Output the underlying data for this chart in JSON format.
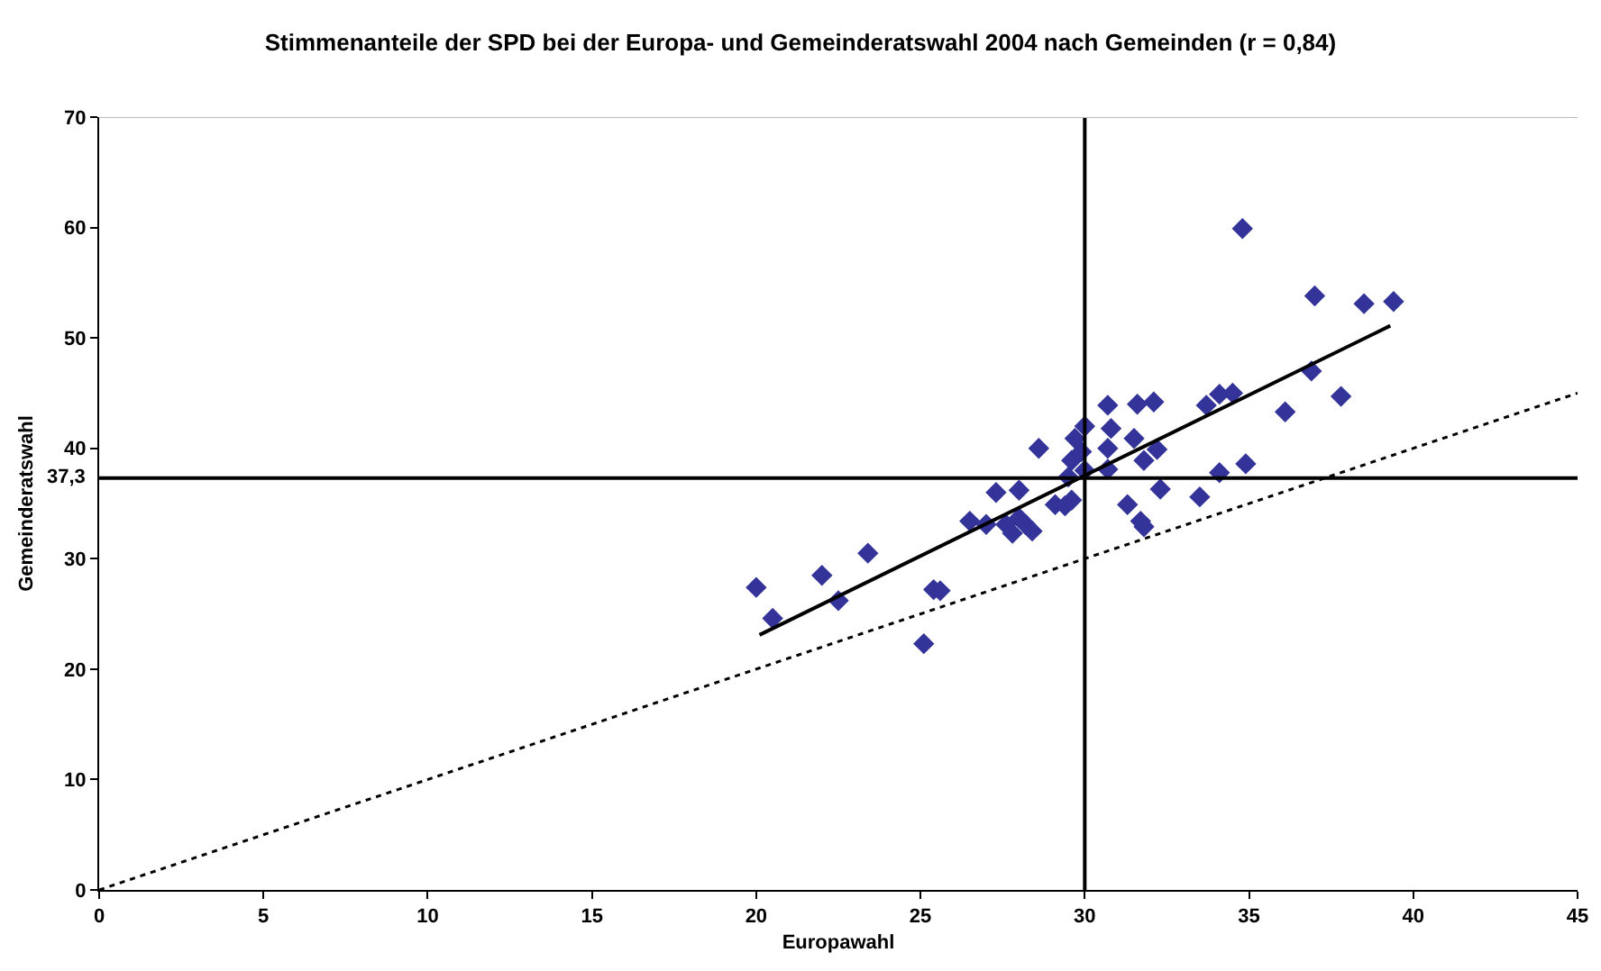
{
  "chart_data": {
    "type": "scatter",
    "title": "Stimmenanteile der SPD bei der Europa- und Gemeinderatswahl 2004 nach Gemeinden (r = 0,84)",
    "xlabel": "Europawahl",
    "ylabel": "Gemeinderatswahl",
    "xlim": [
      0,
      45
    ],
    "xticks": [
      0,
      5,
      10,
      15,
      20,
      25,
      30,
      35,
      40,
      45
    ],
    "ylim": [
      0,
      70
    ],
    "yticks": [
      0,
      10,
      20,
      30,
      40,
      50,
      60,
      70
    ],
    "series": [
      {
        "marker": "diamond",
        "color": "#333399",
        "x": [
          20.0,
          20.5,
          22.0,
          22.5,
          23.4,
          25.4,
          25.6,
          25.1,
          26.5,
          27.0,
          27.3,
          28.0,
          27.6,
          27.8,
          28.0,
          28.2,
          28.4,
          28.6,
          29.1,
          29.4,
          29.6,
          29.6,
          29.7,
          29.9,
          30.0,
          30.0,
          29.5,
          30.7,
          30.8,
          30.7,
          30.7,
          31.6,
          32.1,
          31.5,
          32.2,
          31.8,
          32.3,
          31.3,
          31.7,
          31.8,
          34.8,
          37.0,
          38.5,
          39.4,
          36.9,
          37.8,
          36.1,
          34.1,
          34.5,
          33.7,
          34.9,
          34.1,
          33.5
        ],
        "values": [
          27.4,
          24.6,
          28.5,
          26.2,
          30.5,
          27.2,
          27.1,
          22.3,
          33.4,
          33.1,
          36.0,
          36.2,
          33.1,
          32.3,
          33.7,
          33.1,
          32.5,
          40.0,
          34.9,
          34.8,
          35.3,
          38.9,
          40.9,
          39.7,
          42.0,
          38.0,
          37.4,
          43.9,
          41.8,
          40.0,
          38.1,
          44.0,
          44.2,
          40.9,
          39.9,
          38.9,
          36.3,
          34.9,
          33.4,
          32.9,
          59.9,
          53.8,
          53.1,
          53.3,
          47.0,
          44.7,
          43.3,
          44.9,
          45.0,
          43.9,
          38.6,
          37.8,
          35.6
        ]
      },
      {
        "type": "line",
        "marker": "none",
        "line_style": "solid",
        "color": "#000000",
        "x": [
          20.1,
          39.3
        ],
        "values": [
          23.1,
          51.1
        ]
      },
      {
        "type": "line",
        "marker": "none",
        "line_style": "dotted",
        "color": "#000000",
        "x": [
          0,
          45
        ],
        "values": [
          0,
          45
        ]
      }
    ],
    "ref_lines": [
      {
        "axis": "x",
        "value": 30,
        "label": null,
        "color": "#000000"
      },
      {
        "axis": "y",
        "value": 37.3,
        "label": "37,3",
        "color": "#000000"
      }
    ]
  }
}
